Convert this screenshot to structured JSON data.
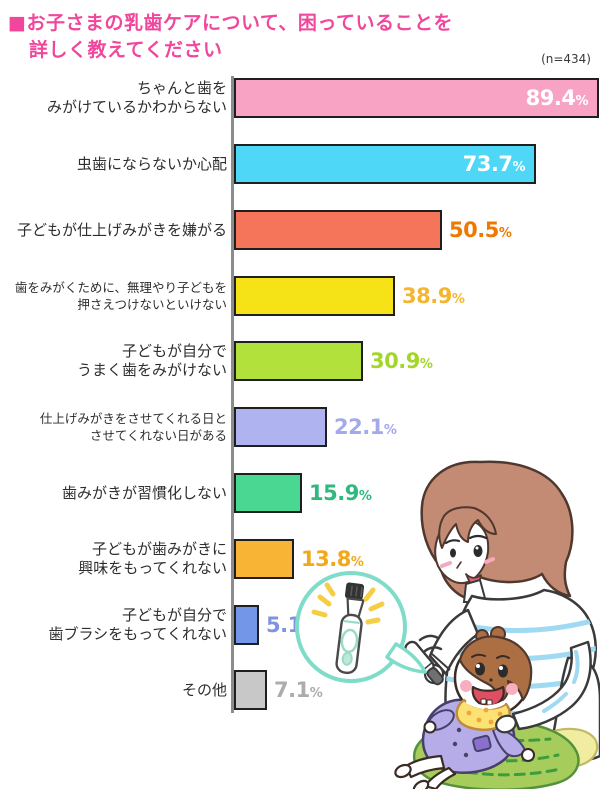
{
  "header": {
    "title_line1": "■お子さまの乳歯ケアについて、困っていることを",
    "title_line2": "詳しく教えてください",
    "sample_size": "(n=434)",
    "title_color": "#F0479C"
  },
  "chart_data": {
    "type": "bar",
    "orientation": "horizontal",
    "unit": "%",
    "max_value": 89.4,
    "xlim": [
      0,
      89.4
    ],
    "grid": false,
    "categories": [
      "ちゃんと歯をみがけているかわからない",
      "虫歯にならないか心配",
      "子どもが仕上げみがきを嫌がる",
      "歯をみがくために、無理やり子どもを押さえつけないといけない",
      "子どもが自分でうまく歯をみがけない",
      "仕上げみがきをさせてくれる日とさせてくれない日がある",
      "歯みがきが習慣化しない",
      "子どもが歯みがきに興味をもってくれない",
      "子どもが自分で歯ブラシをもってくれない",
      "その他"
    ],
    "values": [
      89.4,
      73.7,
      50.5,
      38.9,
      30.9,
      22.1,
      15.9,
      13.8,
      5.1,
      7.1
    ],
    "items": [
      {
        "label": "ちゃんと歯を\nみがけているかわからない",
        "value": 89.4,
        "bar_color": "#F8A3C3",
        "value_color": "#FFFFFF",
        "value_inside": true,
        "small_label": false
      },
      {
        "label": "虫歯にならないか心配",
        "value": 73.7,
        "bar_color": "#4FD7F7",
        "value_color": "#FFFFFF",
        "value_inside": true,
        "small_label": false
      },
      {
        "label": "子どもが仕上げみがきを嫌がる",
        "value": 50.5,
        "bar_color": "#F4755A",
        "value_color": "#EE7800",
        "value_inside": false,
        "small_label": false
      },
      {
        "label": "歯をみがくために、無理やり子どもを\n押さえつけないといけない",
        "value": 38.9,
        "bar_color": "#F5E318",
        "value_color": "#F5B52F",
        "value_inside": false,
        "small_label": true
      },
      {
        "label": "子どもが自分で\nうまく歯をみがけない",
        "value": 30.9,
        "bar_color": "#B2E13C",
        "value_color": "#A3D629",
        "value_inside": false,
        "small_label": false
      },
      {
        "label": "仕上げみがきをさせてくれる日と\nさせてくれない日がある",
        "value": 22.1,
        "bar_color": "#AFB4F0",
        "value_color": "#A3AAEB",
        "value_inside": false,
        "small_label": true
      },
      {
        "label": "歯みがきが習慣化しない",
        "value": 15.9,
        "bar_color": "#49D791",
        "value_color": "#2FB97E",
        "value_inside": false,
        "small_label": false
      },
      {
        "label": "子どもが歯みがきに\n興味をもってくれない",
        "value": 13.8,
        "bar_color": "#F8B434",
        "value_color": "#F3A81C",
        "value_inside": false,
        "small_label": false
      },
      {
        "label": "子どもが自分で\n歯ブラシをもってくれない",
        "value": 5.1,
        "bar_color": "#7396E9",
        "value_color": "#8193DF",
        "value_inside": false,
        "small_label": false
      },
      {
        "label": "その他",
        "value": 7.1,
        "bar_color": "#C8C8C8",
        "value_color": "#ACACAC",
        "value_inside": false,
        "small_label": false
      }
    ]
  },
  "illustration": {
    "description": "Mother with brown bob hair in blue-striped white shirt brushing a lying baby's teeth; baby wears lavender romper and yellow dotted bib on a green cushion; speech bubble with sparkling electric toothbrush",
    "colors": {
      "mother_hair": "#C48B74",
      "shirt_stripe": "#9FD9F2",
      "baby_hair": "#AC6F44",
      "baby_romper": "#B6ACE7",
      "bib": "#FBE273",
      "bib_dots": "#EFA53F",
      "cushion_green": "#A6CD5B",
      "cushion_stitch": "#3E9C3E",
      "cushion_yellow": "#F1EDA0",
      "bubble_outline": "#7EDCC9",
      "sparkles": "#F6CE45"
    }
  }
}
